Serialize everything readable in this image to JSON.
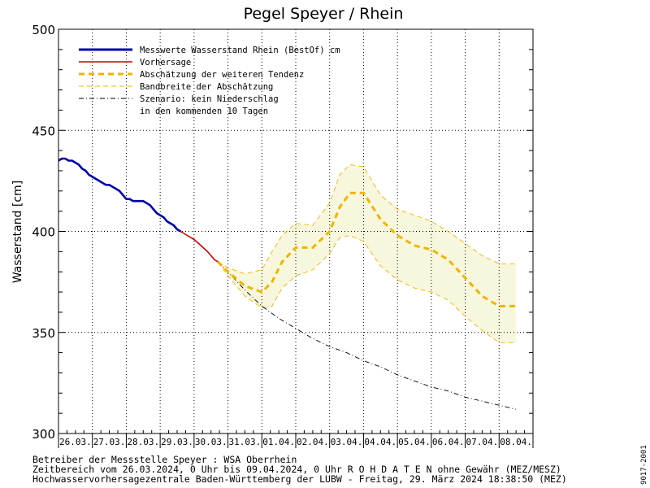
{
  "chart_data": {
    "type": "line",
    "title": "Pegel Speyer / Rhein",
    "ylabel": "Wasserstand [cm]",
    "ylim": [
      300,
      500
    ],
    "yticks": [
      300,
      350,
      400,
      450,
      500
    ],
    "xlim_days": [
      0,
      14
    ],
    "categories": [
      "26.03.",
      "27.03.",
      "28.03.",
      "29.03.",
      "30.03.",
      "31.03.",
      "01.04.",
      "02.04.",
      "03.04.",
      "04.04.",
      "05.04.",
      "06.04.",
      "07.04.",
      "08.04."
    ],
    "grid": true,
    "legend_position": "top-left",
    "series": [
      {
        "name": "Messwerte Wasserstand Rhein (BestOf)  cm",
        "style": "thick-solid",
        "color": "#0000aa",
        "x": [
          0.0,
          0.1,
          0.2,
          0.3,
          0.4,
          0.5,
          0.6,
          0.7,
          0.8,
          0.9,
          1.0,
          1.1,
          1.2,
          1.3,
          1.4,
          1.5,
          1.6,
          1.7,
          1.8,
          1.9,
          2.0,
          2.1,
          2.2,
          2.3,
          2.4,
          2.5,
          2.6,
          2.7,
          2.8,
          2.9,
          3.0,
          3.1,
          3.2,
          3.3,
          3.4,
          3.5,
          3.6
        ],
        "y": [
          435,
          436,
          436,
          435,
          435,
          434,
          433,
          431,
          430,
          428,
          427,
          426,
          425,
          424,
          423,
          423,
          422,
          421,
          420,
          418,
          416,
          416,
          415,
          415,
          415,
          415,
          414,
          413,
          411,
          409,
          408,
          407,
          405,
          404,
          403,
          401,
          400
        ]
      },
      {
        "name": "Vorhersage",
        "style": "solid",
        "color": "#cc0000",
        "x": [
          3.6,
          3.8,
          4.0,
          4.2,
          4.4,
          4.6,
          4.7
        ],
        "y": [
          400,
          398,
          396,
          393,
          390,
          386,
          385
        ]
      },
      {
        "name": "Abschätzung der weiteren Tendenz",
        "style": "thick-dashed",
        "color": "#f0b400",
        "x": [
          4.7,
          5.0,
          5.5,
          6.0,
          6.3,
          6.6,
          7.0,
          7.5,
          8.0,
          8.3,
          8.6,
          9.0,
          9.5,
          10.0,
          10.5,
          11.0,
          11.5,
          12.0,
          12.5,
          13.0,
          13.5
        ],
        "y": [
          385,
          380,
          373,
          370,
          375,
          385,
          392,
          392,
          400,
          412,
          419,
          419,
          406,
          398,
          393,
          391,
          386,
          377,
          368,
          363,
          363
        ]
      },
      {
        "name": "Bandbreite der Abschätzung",
        "style": "thin-dashed",
        "color": "#f0b400",
        "x": [
          4.7,
          5.0,
          5.5,
          6.0,
          6.3,
          6.6,
          7.0,
          7.5,
          8.0,
          8.3,
          8.6,
          9.0,
          9.5,
          10.0,
          10.5,
          11.0,
          11.5,
          12.0,
          12.5,
          13.0,
          13.5
        ],
        "upper": [
          385,
          382,
          379,
          381,
          390,
          398,
          404,
          403,
          414,
          428,
          433,
          432,
          418,
          411,
          408,
          405,
          400,
          394,
          388,
          384,
          384
        ],
        "lower": [
          385,
          378,
          368,
          362,
          363,
          372,
          378,
          381,
          389,
          397,
          398,
          395,
          383,
          376,
          372,
          370,
          366,
          358,
          351,
          345,
          345
        ]
      },
      {
        "name": "Szenario: kein Niederschlag",
        "name_line2": "in den kommenden 10 Tagen",
        "style": "dash-dot",
        "color": "#000000",
        "x": [
          4.7,
          5.0,
          5.5,
          6.0,
          6.5,
          7.0,
          7.5,
          8.0,
          8.5,
          9.0,
          9.5,
          10.0,
          10.5,
          11.0,
          11.5,
          12.0,
          12.5,
          13.0,
          13.5
        ],
        "y": [
          385,
          380,
          371,
          363,
          357,
          352,
          347,
          343,
          340,
          336,
          333,
          329,
          326,
          323,
          321,
          318,
          316,
          314,
          312
        ]
      }
    ]
  },
  "footer": {
    "line1": "Betreiber der Messstelle Speyer : WSA Oberrhein",
    "line2": "Zeitbereich vom 26.03.2024, 0 Uhr bis 09.04.2024, 0 Uhr   R O H D A T E N ohne Gewähr (MEZ/MESZ)",
    "line3": "Hochwasservorhersagezentrale Baden-Württemberg der LUBW - Freitag, 29. März 2024 18:38:50 (MEZ)",
    "code": "9017-2001"
  }
}
